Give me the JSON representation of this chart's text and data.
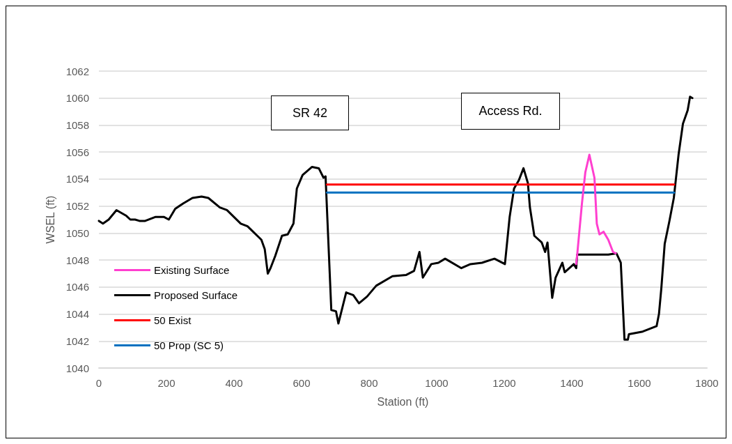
{
  "chart_data": {
    "type": "line",
    "xlabel": "Station (ft)",
    "ylabel": "WSEL (ft)",
    "xlim": [
      0,
      1800
    ],
    "xticks": [
      0,
      200,
      400,
      600,
      800,
      1000,
      1200,
      1400,
      1600,
      1800
    ],
    "ylim": [
      1040,
      1062
    ],
    "yticks": [
      1040,
      1042,
      1044,
      1046,
      1048,
      1050,
      1052,
      1054,
      1056,
      1058,
      1060,
      1062
    ],
    "grid": "y",
    "legend": "bottom left",
    "marker": "none",
    "line_style": "solid",
    "annotations": [
      "SR 42",
      "Access Rd."
    ],
    "series": [
      {
        "name": "Existing Surface",
        "color": "#ff3fcf",
        "x": [
          1413,
          1416,
          1430,
          1440,
          1452,
          1467,
          1474,
          1482,
          1494,
          1508,
          1522,
          1530
        ],
        "values": [
          1047.7,
          1048.4,
          1052.2,
          1054.5,
          1055.8,
          1054.1,
          1050.7,
          1049.9,
          1050.1,
          1049.5,
          1048.6,
          1048.5
        ]
      },
      {
        "name": "Proposed Surface",
        "color": "#000000",
        "x": [
          0,
          12,
          29,
          52,
          80,
          93,
          107,
          120,
          137,
          168,
          192,
          207,
          226,
          250,
          277,
          304,
          324,
          358,
          379,
          420,
          440,
          481,
          491,
          500,
          508,
          522,
          542,
          559,
          576,
          586,
          603,
          631,
          651,
          665,
          671,
          688,
          702,
          709,
          732,
          753,
          770,
          794,
          821,
          869,
          910,
          933,
          949,
          959,
          984,
          1005,
          1025,
          1073,
          1100,
          1134,
          1171,
          1202,
          1216,
          1229,
          1243,
          1257,
          1270,
          1276,
          1289,
          1311,
          1321,
          1328,
          1342,
          1352,
          1372,
          1379,
          1406,
          1413,
          1416,
          1508,
          1532,
          1545,
          1556,
          1566,
          1569,
          1610,
          1651,
          1658,
          1665,
          1675,
          1689,
          1702,
          1716,
          1729,
          1743,
          1750,
          1757
        ],
        "values": [
          1050.9,
          1050.7,
          1051.0,
          1051.7,
          1051.3,
          1051.0,
          1051.0,
          1050.9,
          1050.9,
          1051.2,
          1051.2,
          1051.0,
          1051.8,
          1052.2,
          1052.6,
          1052.7,
          1052.6,
          1051.9,
          1051.7,
          1050.7,
          1050.5,
          1049.5,
          1048.8,
          1047.0,
          1047.4,
          1048.3,
          1049.8,
          1049.9,
          1050.7,
          1053.3,
          1054.3,
          1054.9,
          1054.8,
          1054.1,
          1054.2,
          1044.3,
          1044.2,
          1043.3,
          1045.6,
          1045.4,
          1044.8,
          1045.3,
          1046.1,
          1046.8,
          1046.9,
          1047.2,
          1048.6,
          1046.7,
          1047.7,
          1047.8,
          1048.1,
          1047.4,
          1047.7,
          1047.8,
          1048.1,
          1047.7,
          1051.2,
          1053.3,
          1053.9,
          1054.8,
          1053.7,
          1051.9,
          1049.8,
          1049.3,
          1048.6,
          1049.3,
          1045.2,
          1046.7,
          1047.8,
          1047.1,
          1047.7,
          1047.4,
          1048.4,
          1048.4,
          1048.5,
          1047.8,
          1042.1,
          1042.1,
          1042.5,
          1042.7,
          1043.1,
          1044.0,
          1045.9,
          1049.2,
          1050.9,
          1052.6,
          1055.8,
          1058.1,
          1059.1,
          1060.1,
          1060.0
        ]
      },
      {
        "name": "50 Exist",
        "color": "#ff0000",
        "x": [
          675,
          1703
        ],
        "values": [
          1053.6,
          1053.6
        ]
      },
      {
        "name": "50 Prop (SC 5)",
        "color": "#0070c0",
        "x": [
          675,
          1703
        ],
        "values": [
          1053.0,
          1053.0
        ]
      }
    ]
  }
}
